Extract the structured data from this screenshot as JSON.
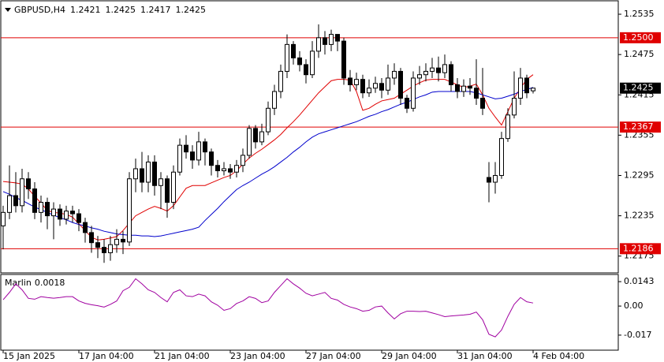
{
  "chart_data": [
    {
      "type": "candlestick",
      "title": "GBPUSD,H4",
      "header_values": [
        1.2421,
        1.2425,
        1.2417,
        1.2425
      ],
      "categories": [
        "15 Jan 2025",
        null,
        null,
        null,
        null,
        null,
        null,
        null,
        null,
        null,
        null,
        null,
        "17 Jan 04:00",
        null,
        null,
        null,
        null,
        null,
        null,
        null,
        null,
        null,
        null,
        null,
        "21 Jan 04:00",
        null,
        null,
        null,
        null,
        null,
        null,
        null,
        null,
        null,
        null,
        null,
        "23 Jan 04:00",
        null,
        null,
        null,
        null,
        null,
        null,
        null,
        null,
        null,
        null,
        null,
        "27 Jan 04:00",
        null,
        null,
        null,
        null,
        null,
        null,
        null,
        null,
        null,
        null,
        null,
        "29 Jan 04:00",
        null,
        null,
        null,
        null,
        null,
        null,
        null,
        null,
        null,
        null,
        null,
        "31 Jan 04:00",
        null,
        null,
        null,
        null,
        null,
        null,
        null,
        null,
        null,
        null,
        null,
        "4 Feb 04:00"
      ],
      "open": [
        1.222,
        1.224,
        1.2265,
        1.225,
        1.229,
        1.2275,
        1.224,
        1.2255,
        1.2235,
        1.2245,
        1.223,
        1.2242,
        1.2238,
        1.2225,
        1.221,
        1.2195,
        1.2188,
        1.218,
        1.2192,
        1.22,
        1.2196,
        1.229,
        1.2305,
        1.2285,
        1.2315,
        1.228,
        1.229,
        1.2255,
        1.23,
        1.234,
        1.233,
        1.2318,
        1.2345,
        1.233,
        1.231,
        1.2302,
        1.2305,
        1.23,
        1.231,
        1.2325,
        1.2365,
        1.2345,
        1.236,
        1.2395,
        1.242,
        1.245,
        1.249,
        1.247,
        1.246,
        1.2445,
        1.248,
        1.25,
        1.249,
        1.2505,
        1.2495,
        1.244,
        1.243,
        1.2438,
        1.2418,
        1.2425,
        1.2432,
        1.2422,
        1.244,
        1.245,
        1.241,
        1.2395,
        1.244,
        1.2445,
        1.245,
        1.2455,
        1.2448,
        1.246,
        1.243,
        1.242,
        1.2428,
        1.2425,
        1.241,
        1.2292,
        1.2285,
        1.2295,
        1.235,
        1.2385,
        1.241,
        1.244,
        1.2421
      ],
      "high": [
        1.225,
        1.231,
        1.23,
        1.2305,
        1.23,
        1.2285,
        1.2265,
        1.2262,
        1.2255,
        1.2252,
        1.225,
        1.225,
        1.2245,
        1.2232,
        1.222,
        1.2205,
        1.22,
        1.2205,
        1.2215,
        1.2212,
        1.23,
        1.232,
        1.233,
        1.2325,
        1.2325,
        1.23,
        1.2295,
        1.231,
        1.235,
        1.2355,
        1.234,
        1.236,
        1.235,
        1.2335,
        1.2318,
        1.2315,
        1.2312,
        1.2318,
        1.2335,
        1.237,
        1.237,
        1.2372,
        1.2405,
        1.243,
        1.246,
        1.2505,
        1.2495,
        1.248,
        1.2468,
        1.2495,
        1.252,
        1.251,
        1.2512,
        1.2505,
        1.25,
        1.2452,
        1.2448,
        1.2445,
        1.2438,
        1.2442,
        1.244,
        1.246,
        1.2462,
        1.2455,
        1.2415,
        1.245,
        1.2458,
        1.2462,
        1.247,
        1.2472,
        1.2475,
        1.2465,
        1.244,
        1.2438,
        1.244,
        1.2468,
        1.2455,
        1.2315,
        1.2315,
        1.236,
        1.2395,
        1.245,
        1.2455,
        1.2445,
        1.2425
      ],
      "low": [
        1.2185,
        1.223,
        1.224,
        1.224,
        1.226,
        1.223,
        1.2225,
        1.2215,
        1.22,
        1.222,
        1.2222,
        1.2225,
        1.2212,
        1.2195,
        1.218,
        1.2172,
        1.2165,
        1.2168,
        1.218,
        1.2178,
        1.219,
        1.227,
        1.227,
        1.227,
        1.2265,
        1.2245,
        1.2232,
        1.2245,
        1.2295,
        1.232,
        1.2305,
        1.231,
        1.231,
        1.2295,
        1.2292,
        1.2295,
        1.229,
        1.2292,
        1.23,
        1.232,
        1.2335,
        1.234,
        1.2355,
        1.2385,
        1.241,
        1.244,
        1.246,
        1.245,
        1.2432,
        1.244,
        1.247,
        1.2475,
        1.248,
        1.248,
        1.243,
        1.242,
        1.2422,
        1.241,
        1.2412,
        1.2418,
        1.241,
        1.2415,
        1.243,
        1.24,
        1.2388,
        1.239,
        1.243,
        1.2435,
        1.244,
        1.2435,
        1.244,
        1.242,
        1.241,
        1.2412,
        1.2415,
        1.24,
        1.2385,
        1.2255,
        1.2268,
        1.229,
        1.2345,
        1.238,
        1.24,
        1.241,
        1.2417
      ],
      "close": [
        1.224,
        1.2265,
        1.225,
        1.229,
        1.2275,
        1.224,
        1.2255,
        1.2235,
        1.2245,
        1.223,
        1.2242,
        1.2238,
        1.2225,
        1.221,
        1.2195,
        1.2188,
        1.218,
        1.2192,
        1.22,
        1.2196,
        1.229,
        1.2305,
        1.2285,
        1.2315,
        1.228,
        1.229,
        1.2255,
        1.23,
        1.234,
        1.233,
        1.2318,
        1.2345,
        1.233,
        1.231,
        1.2302,
        1.2305,
        1.23,
        1.231,
        1.2325,
        1.2365,
        1.2345,
        1.236,
        1.2395,
        1.242,
        1.245,
        1.249,
        1.247,
        1.246,
        1.2445,
        1.248,
        1.25,
        1.249,
        1.2505,
        1.2495,
        1.244,
        1.243,
        1.2438,
        1.2418,
        1.2425,
        1.2432,
        1.2422,
        1.244,
        1.245,
        1.241,
        1.2395,
        1.244,
        1.2445,
        1.245,
        1.2455,
        1.2448,
        1.246,
        1.243,
        1.242,
        1.2428,
        1.2425,
        1.241,
        1.2395,
        1.2285,
        1.2295,
        1.235,
        1.2385,
        1.241,
        1.244,
        1.2418,
        1.2425
      ],
      "up_color": "#ffffff",
      "down_color": "#000000",
      "overlays": [
        {
          "color": "#e00000",
          "values": [
            1.2286,
            1.2285,
            1.2284,
            1.2282,
            1.2275,
            1.2264,
            1.2254,
            1.2243,
            1.224,
            1.2239,
            1.2237,
            1.2233,
            1.2223,
            1.2213,
            1.2203,
            1.2199,
            1.22,
            1.2202,
            1.2204,
            1.2213,
            1.2224,
            1.2235,
            1.224,
            1.2245,
            1.2249,
            1.2246,
            1.2242,
            1.225,
            1.2263,
            1.2276,
            1.228,
            1.228,
            1.228,
            1.2284,
            1.2288,
            1.2292,
            1.2295,
            1.2302,
            1.2312,
            1.2321,
            1.2328,
            1.2334,
            1.2341,
            1.2348,
            1.2356,
            1.2366,
            1.2375,
            1.2385,
            1.2396,
            1.2407,
            1.2418,
            1.2427,
            1.2436,
            1.2438,
            1.2438,
            1.2437,
            1.242,
            1.2392,
            1.2395,
            1.2401,
            1.2406,
            1.2408,
            1.241,
            1.2416,
            1.2422,
            1.2428,
            1.2433,
            1.2437,
            1.2438,
            1.2438,
            1.2438,
            1.2434,
            1.243,
            1.2426,
            1.2428,
            1.2431,
            1.2415,
            1.2395,
            1.2382,
            1.237,
            1.239,
            1.241,
            1.2425,
            1.2438,
            1.2445
          ]
        },
        {
          "color": "#0000cc",
          "values": [
            1.2271,
            1.2267,
            1.2262,
            1.2258,
            1.2253,
            1.2248,
            1.2244,
            1.224,
            1.2236,
            1.2232,
            1.2229,
            1.2225,
            1.2222,
            1.222,
            1.2217,
            1.2215,
            1.2212,
            1.221,
            1.2208,
            1.2207,
            1.2206,
            1.2206,
            1.2205,
            1.2205,
            1.2204,
            1.2205,
            1.2207,
            1.2209,
            1.2211,
            1.2213,
            1.2215,
            1.2218,
            1.2228,
            1.2237,
            1.2246,
            1.2256,
            1.2265,
            1.2274,
            1.228,
            1.2285,
            1.2291,
            1.2297,
            1.2302,
            1.2308,
            1.2315,
            1.2322,
            1.233,
            1.2337,
            1.2345,
            1.2352,
            1.2357,
            1.236,
            1.2363,
            1.2366,
            1.2369,
            1.2372,
            1.2375,
            1.2379,
            1.2383,
            1.2386,
            1.239,
            1.2393,
            1.2397,
            1.2401,
            1.2404,
            1.2408,
            1.2412,
            1.2415,
            1.2419,
            1.242,
            1.242,
            1.242,
            1.242,
            1.242,
            1.242,
            1.2418,
            1.2415,
            1.2412,
            1.2409,
            1.241,
            1.2413,
            1.2416,
            1.242,
            1.2423,
            1.2426
          ]
        }
      ],
      "levels": [
        {
          "value": 1.25,
          "label": "1.2500"
        },
        {
          "value": 1.2367,
          "label": "1.2367"
        },
        {
          "value": 1.2186,
          "label": "1.2186"
        }
      ],
      "level_color": "#e00000",
      "last_price": {
        "value": 1.2425,
        "label": "1.2425"
      },
      "ylim": [
        1.215,
        1.2555
      ],
      "yticks": [
        1.2535,
        1.2475,
        1.2415,
        1.2355,
        1.2295,
        1.2235,
        1.2175
      ]
    },
    {
      "type": "line",
      "title": "Marlin",
      "header_value": 0.0018,
      "color": "#a000a0",
      "values": [
        0.0037,
        0.008,
        0.013,
        0.0095,
        0.0045,
        0.004,
        0.0055,
        0.005,
        0.0046,
        0.005,
        0.0055,
        0.0055,
        0.003,
        0.0016,
        0.0008,
        0.0002,
        -0.0006,
        0.001,
        0.003,
        0.009,
        0.011,
        0.016,
        0.013,
        0.0095,
        0.008,
        0.005,
        0.0025,
        0.008,
        0.0095,
        0.006,
        0.0055,
        0.007,
        0.006,
        0.0025,
        0.0005,
        -0.0025,
        -0.0015,
        0.0015,
        0.003,
        0.0055,
        0.0045,
        0.002,
        0.003,
        0.008,
        0.012,
        0.016,
        0.013,
        0.0105,
        0.0075,
        0.006,
        0.007,
        0.008,
        0.0045,
        0.0035,
        0.001,
        -0.0005,
        -0.0015,
        -0.003,
        -0.0025,
        -0.0005,
        0.0,
        -0.004,
        -0.0075,
        -0.0045,
        -0.003,
        -0.003,
        -0.0032,
        -0.003,
        -0.004,
        -0.005,
        -0.0062,
        -0.0058,
        -0.0055,
        -0.0052,
        -0.0048,
        -0.0035,
        -0.008,
        -0.0165,
        -0.018,
        -0.014,
        -0.006,
        0.001,
        0.005,
        0.0025,
        0.0018
      ],
      "ylim": [
        -0.0258,
        0.0185
      ],
      "yticks": [
        0.0143,
        {
          "value": 0,
          "label": "0.00"
        },
        -0.017
      ]
    }
  ]
}
